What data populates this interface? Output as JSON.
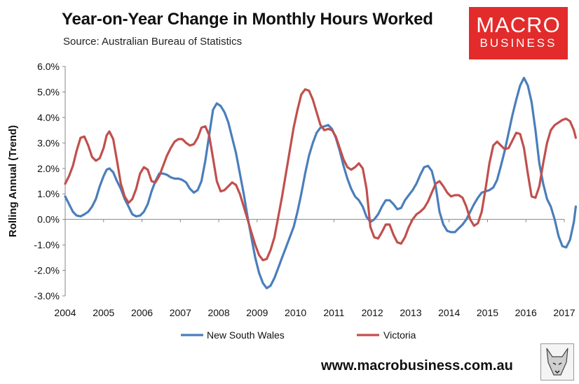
{
  "header": {
    "title": "Year-on-Year Change in Monthly Hours Worked",
    "source": "Source: Australian Bureau of Statistics"
  },
  "logo": {
    "top": "MACRO",
    "bottom": "BUSINESS",
    "color": "#e32b2b"
  },
  "footer": {
    "website": "www.macrobusiness.com.au"
  },
  "chart_data": {
    "type": "line",
    "title": "Year-on-Year Change in Monthly Hours Worked",
    "ylabel": "Rolling Annual (Trend)",
    "xlabel": "",
    "ylim": [
      -3.0,
      6.0
    ],
    "xlim": [
      2004,
      2017
    ],
    "grid": false,
    "legend": "bottom",
    "y_ticks": [
      "6.0%",
      "5.0%",
      "4.0%",
      "3.0%",
      "2.0%",
      "1.0%",
      "0.0%",
      "-1.0%",
      "-2.0%",
      "-3.0%"
    ],
    "y_tick_values": [
      6,
      5,
      4,
      3,
      2,
      1,
      0,
      -1,
      -2,
      -3
    ],
    "x_ticks": [
      "2004",
      "2005",
      "2006",
      "2007",
      "2008",
      "2009",
      "2010",
      "2011",
      "2012",
      "2013",
      "2014",
      "2015",
      "2016",
      "2017"
    ],
    "x_tick_values": [
      2004,
      2005,
      2006,
      2007,
      2008,
      2009,
      2010,
      2011,
      2012,
      2013,
      2014,
      2015,
      2016,
      2017
    ],
    "series": [
      {
        "name": "New South Wales",
        "color": "#4a7ebb",
        "points": [
          [
            2004.0,
            0.9
          ],
          [
            2004.1,
            0.6
          ],
          [
            2004.2,
            0.3
          ],
          [
            2004.3,
            0.15
          ],
          [
            2004.4,
            0.12
          ],
          [
            2004.5,
            0.2
          ],
          [
            2004.6,
            0.3
          ],
          [
            2004.7,
            0.5
          ],
          [
            2004.8,
            0.8
          ],
          [
            2004.9,
            1.3
          ],
          [
            2005.0,
            1.7
          ],
          [
            2005.08,
            1.95
          ],
          [
            2005.15,
            2.0
          ],
          [
            2005.25,
            1.85
          ],
          [
            2005.35,
            1.5
          ],
          [
            2005.45,
            1.2
          ],
          [
            2005.55,
            0.8
          ],
          [
            2005.65,
            0.5
          ],
          [
            2005.75,
            0.2
          ],
          [
            2005.85,
            0.12
          ],
          [
            2005.95,
            0.15
          ],
          [
            2006.05,
            0.3
          ],
          [
            2006.15,
            0.6
          ],
          [
            2006.25,
            1.1
          ],
          [
            2006.35,
            1.5
          ],
          [
            2006.45,
            1.8
          ],
          [
            2006.55,
            1.8
          ],
          [
            2006.65,
            1.75
          ],
          [
            2006.75,
            1.65
          ],
          [
            2006.85,
            1.6
          ],
          [
            2006.95,
            1.6
          ],
          [
            2007.05,
            1.55
          ],
          [
            2007.15,
            1.45
          ],
          [
            2007.25,
            1.2
          ],
          [
            2007.35,
            1.05
          ],
          [
            2007.45,
            1.15
          ],
          [
            2007.55,
            1.5
          ],
          [
            2007.65,
            2.3
          ],
          [
            2007.75,
            3.3
          ],
          [
            2007.85,
            4.3
          ],
          [
            2007.95,
            4.55
          ],
          [
            2008.05,
            4.45
          ],
          [
            2008.15,
            4.2
          ],
          [
            2008.25,
            3.8
          ],
          [
            2008.35,
            3.2
          ],
          [
            2008.45,
            2.6
          ],
          [
            2008.55,
            1.8
          ],
          [
            2008.65,
            1.0
          ],
          [
            2008.75,
            0.1
          ],
          [
            2008.85,
            -0.7
          ],
          [
            2008.95,
            -1.5
          ],
          [
            2009.05,
            -2.1
          ],
          [
            2009.15,
            -2.5
          ],
          [
            2009.25,
            -2.7
          ],
          [
            2009.35,
            -2.6
          ],
          [
            2009.45,
            -2.3
          ],
          [
            2009.55,
            -1.9
          ],
          [
            2009.65,
            -1.5
          ],
          [
            2009.75,
            -1.1
          ],
          [
            2009.85,
            -0.7
          ],
          [
            2009.95,
            -0.3
          ],
          [
            2010.05,
            0.3
          ],
          [
            2010.15,
            1.0
          ],
          [
            2010.25,
            1.8
          ],
          [
            2010.35,
            2.5
          ],
          [
            2010.45,
            3.0
          ],
          [
            2010.55,
            3.4
          ],
          [
            2010.65,
            3.6
          ],
          [
            2010.75,
            3.65
          ],
          [
            2010.85,
            3.7
          ],
          [
            2010.95,
            3.55
          ],
          [
            2011.05,
            3.2
          ],
          [
            2011.15,
            2.7
          ],
          [
            2011.25,
            2.1
          ],
          [
            2011.35,
            1.6
          ],
          [
            2011.45,
            1.2
          ],
          [
            2011.55,
            0.9
          ],
          [
            2011.65,
            0.75
          ],
          [
            2011.75,
            0.5
          ],
          [
            2011.85,
            0.1
          ],
          [
            2011.95,
            -0.1
          ],
          [
            2012.05,
            0.0
          ],
          [
            2012.15,
            0.2
          ],
          [
            2012.25,
            0.5
          ],
          [
            2012.35,
            0.75
          ],
          [
            2012.45,
            0.75
          ],
          [
            2012.55,
            0.6
          ],
          [
            2012.65,
            0.4
          ],
          [
            2012.75,
            0.45
          ],
          [
            2012.85,
            0.75
          ],
          [
            2012.95,
            0.95
          ],
          [
            2013.05,
            1.15
          ],
          [
            2013.15,
            1.4
          ],
          [
            2013.25,
            1.75
          ],
          [
            2013.35,
            2.05
          ],
          [
            2013.45,
            2.1
          ],
          [
            2013.55,
            1.9
          ],
          [
            2013.65,
            1.3
          ],
          [
            2013.75,
            0.3
          ],
          [
            2013.85,
            -0.2
          ],
          [
            2013.95,
            -0.45
          ],
          [
            2014.05,
            -0.5
          ],
          [
            2014.15,
            -0.5
          ],
          [
            2014.25,
            -0.35
          ],
          [
            2014.35,
            -0.2
          ],
          [
            2014.45,
            0.0
          ],
          [
            2014.55,
            0.3
          ],
          [
            2014.65,
            0.6
          ],
          [
            2014.75,
            0.85
          ],
          [
            2014.85,
            1.05
          ],
          [
            2014.95,
            1.1
          ],
          [
            2015.05,
            1.15
          ],
          [
            2015.15,
            1.25
          ],
          [
            2015.25,
            1.55
          ],
          [
            2015.35,
            2.1
          ],
          [
            2015.45,
            2.7
          ],
          [
            2015.55,
            3.4
          ],
          [
            2015.65,
            4.1
          ],
          [
            2015.75,
            4.7
          ],
          [
            2015.85,
            5.25
          ],
          [
            2015.95,
            5.55
          ],
          [
            2016.05,
            5.25
          ],
          [
            2016.15,
            4.6
          ],
          [
            2016.25,
            3.5
          ],
          [
            2016.35,
            2.2
          ],
          [
            2016.45,
            1.4
          ],
          [
            2016.55,
            0.8
          ],
          [
            2016.65,
            0.5
          ],
          [
            2016.75,
            0.0
          ],
          [
            2016.85,
            -0.65
          ],
          [
            2016.95,
            -1.05
          ],
          [
            2017.05,
            -1.1
          ],
          [
            2017.15,
            -0.8
          ],
          [
            2017.25,
            -0.1
          ],
          [
            2017.3,
            0.5
          ]
        ]
      },
      {
        "name": "Victoria",
        "color": "#c0504d",
        "points": [
          [
            2004.0,
            1.4
          ],
          [
            2004.1,
            1.7
          ],
          [
            2004.2,
            2.1
          ],
          [
            2004.3,
            2.7
          ],
          [
            2004.4,
            3.2
          ],
          [
            2004.5,
            3.25
          ],
          [
            2004.6,
            2.9
          ],
          [
            2004.7,
            2.45
          ],
          [
            2004.8,
            2.3
          ],
          [
            2004.9,
            2.4
          ],
          [
            2005.0,
            2.8
          ],
          [
            2005.08,
            3.3
          ],
          [
            2005.15,
            3.45
          ],
          [
            2005.25,
            3.15
          ],
          [
            2005.35,
            2.3
          ],
          [
            2005.45,
            1.4
          ],
          [
            2005.55,
            0.9
          ],
          [
            2005.65,
            0.65
          ],
          [
            2005.75,
            0.8
          ],
          [
            2005.85,
            1.2
          ],
          [
            2005.95,
            1.8
          ],
          [
            2006.05,
            2.05
          ],
          [
            2006.15,
            1.95
          ],
          [
            2006.25,
            1.5
          ],
          [
            2006.35,
            1.45
          ],
          [
            2006.45,
            1.7
          ],
          [
            2006.55,
            2.1
          ],
          [
            2006.65,
            2.5
          ],
          [
            2006.75,
            2.8
          ],
          [
            2006.85,
            3.05
          ],
          [
            2006.95,
            3.15
          ],
          [
            2007.05,
            3.15
          ],
          [
            2007.15,
            3.0
          ],
          [
            2007.25,
            2.9
          ],
          [
            2007.35,
            2.95
          ],
          [
            2007.45,
            3.2
          ],
          [
            2007.55,
            3.6
          ],
          [
            2007.65,
            3.65
          ],
          [
            2007.75,
            3.3
          ],
          [
            2007.85,
            2.4
          ],
          [
            2007.95,
            1.5
          ],
          [
            2008.05,
            1.1
          ],
          [
            2008.15,
            1.15
          ],
          [
            2008.25,
            1.3
          ],
          [
            2008.35,
            1.45
          ],
          [
            2008.45,
            1.35
          ],
          [
            2008.55,
            1.0
          ],
          [
            2008.65,
            0.5
          ],
          [
            2008.75,
            0.0
          ],
          [
            2008.85,
            -0.5
          ],
          [
            2008.95,
            -1.0
          ],
          [
            2009.05,
            -1.4
          ],
          [
            2009.15,
            -1.6
          ],
          [
            2009.25,
            -1.55
          ],
          [
            2009.35,
            -1.2
          ],
          [
            2009.45,
            -0.7
          ],
          [
            2009.55,
            0.1
          ],
          [
            2009.65,
            0.9
          ],
          [
            2009.75,
            1.8
          ],
          [
            2009.85,
            2.7
          ],
          [
            2009.95,
            3.6
          ],
          [
            2010.05,
            4.3
          ],
          [
            2010.15,
            4.9
          ],
          [
            2010.25,
            5.1
          ],
          [
            2010.35,
            5.05
          ],
          [
            2010.45,
            4.7
          ],
          [
            2010.55,
            4.2
          ],
          [
            2010.65,
            3.7
          ],
          [
            2010.75,
            3.5
          ],
          [
            2010.85,
            3.55
          ],
          [
            2010.95,
            3.5
          ],
          [
            2011.05,
            3.25
          ],
          [
            2011.15,
            2.8
          ],
          [
            2011.25,
            2.35
          ],
          [
            2011.35,
            2.05
          ],
          [
            2011.45,
            1.95
          ],
          [
            2011.55,
            2.05
          ],
          [
            2011.65,
            2.2
          ],
          [
            2011.75,
            2.0
          ],
          [
            2011.85,
            1.2
          ],
          [
            2011.95,
            -0.3
          ],
          [
            2012.05,
            -0.7
          ],
          [
            2012.15,
            -0.75
          ],
          [
            2012.25,
            -0.5
          ],
          [
            2012.35,
            -0.2
          ],
          [
            2012.45,
            -0.2
          ],
          [
            2012.55,
            -0.6
          ],
          [
            2012.65,
            -0.9
          ],
          [
            2012.75,
            -0.95
          ],
          [
            2012.85,
            -0.7
          ],
          [
            2012.95,
            -0.3
          ],
          [
            2013.05,
            0.0
          ],
          [
            2013.15,
            0.2
          ],
          [
            2013.25,
            0.3
          ],
          [
            2013.35,
            0.45
          ],
          [
            2013.45,
            0.7
          ],
          [
            2013.55,
            1.05
          ],
          [
            2013.65,
            1.4
          ],
          [
            2013.75,
            1.5
          ],
          [
            2013.85,
            1.3
          ],
          [
            2013.95,
            1.05
          ],
          [
            2014.05,
            0.9
          ],
          [
            2014.15,
            0.95
          ],
          [
            2014.25,
            0.95
          ],
          [
            2014.35,
            0.85
          ],
          [
            2014.45,
            0.5
          ],
          [
            2014.55,
            0.0
          ],
          [
            2014.65,
            -0.25
          ],
          [
            2014.75,
            -0.15
          ],
          [
            2014.85,
            0.3
          ],
          [
            2014.95,
            1.2
          ],
          [
            2015.05,
            2.2
          ],
          [
            2015.15,
            2.9
          ],
          [
            2015.25,
            3.05
          ],
          [
            2015.35,
            2.9
          ],
          [
            2015.45,
            2.75
          ],
          [
            2015.55,
            2.8
          ],
          [
            2015.65,
            3.1
          ],
          [
            2015.75,
            3.4
          ],
          [
            2015.85,
            3.35
          ],
          [
            2015.95,
            2.8
          ],
          [
            2016.05,
            1.8
          ],
          [
            2016.15,
            0.9
          ],
          [
            2016.25,
            0.85
          ],
          [
            2016.35,
            1.3
          ],
          [
            2016.45,
            2.2
          ],
          [
            2016.55,
            3.0
          ],
          [
            2016.65,
            3.5
          ],
          [
            2016.75,
            3.7
          ],
          [
            2016.85,
            3.8
          ],
          [
            2016.95,
            3.9
          ],
          [
            2017.05,
            3.95
          ],
          [
            2017.15,
            3.85
          ],
          [
            2017.25,
            3.5
          ],
          [
            2017.3,
            3.2
          ]
        ]
      }
    ]
  }
}
